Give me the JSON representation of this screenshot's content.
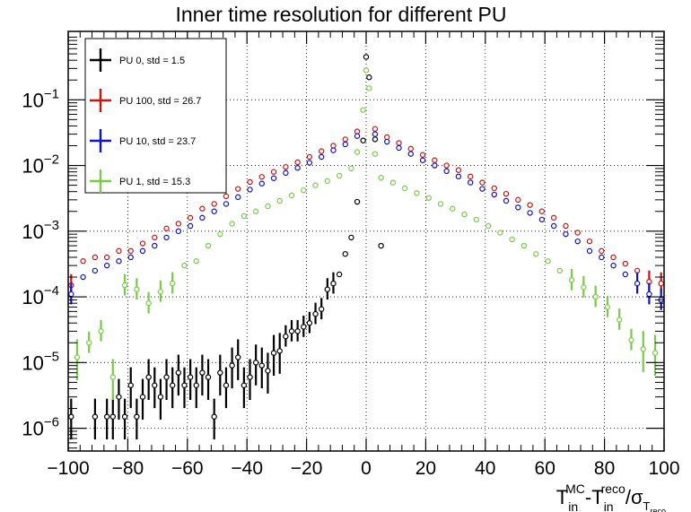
{
  "chart_data": {
    "type": "scatter",
    "title": "Inner time resolution for different PU",
    "xlabel": {
      "base1": "T",
      "sub1": "in",
      "sup1": "MC",
      "dash": "-",
      "base2": "T",
      "sub2": "in",
      "sup2": "reco",
      "slash": "/σ",
      "sub3": "T",
      "sub3sub": "reco"
    },
    "ylabel": "",
    "xlim": [
      -100,
      100
    ],
    "ylim": [
      4.5e-07,
      1.1
    ],
    "yscale": "log",
    "grid": true,
    "legend_position": "top-left",
    "x_ticks": [
      -100,
      -80,
      -60,
      -40,
      -20,
      0,
      20,
      40,
      60,
      80,
      100
    ],
    "x_tick_labels": [
      "−100",
      "−80",
      "−60",
      "−40",
      "−20",
      "0",
      "20",
      "40",
      "60",
      "80",
      "100"
    ],
    "y_ticks": [
      {
        "exp": -6,
        "base": "10",
        "sup": "−6"
      },
      {
        "exp": -5,
        "base": "10",
        "sup": "−5"
      },
      {
        "exp": -4,
        "base": "10",
        "sup": "−4"
      },
      {
        "exp": -3,
        "base": "10",
        "sup": "−3"
      },
      {
        "exp": -2,
        "base": "10",
        "sup": "−2"
      },
      {
        "exp": -1,
        "base": "10",
        "sup": "−1"
      }
    ],
    "series": [
      {
        "name": "PU 0, std = 1.5",
        "color": "#000000",
        "points": [
          [
            -99,
            1.5e-06
          ],
          [
            -91,
            1.5e-06
          ],
          [
            -87,
            1.5e-06
          ],
          [
            -85,
            1.5e-06
          ],
          [
            -83,
            3e-06
          ],
          [
            -81,
            1.5e-06
          ],
          [
            -79,
            4.5e-06
          ],
          [
            -77,
            1.5e-06
          ],
          [
            -75,
            3e-06
          ],
          [
            -73,
            6e-06
          ],
          [
            -71,
            4.5e-06
          ],
          [
            -69,
            3e-06
          ],
          [
            -67,
            6e-06
          ],
          [
            -65,
            4.5e-06
          ],
          [
            -63,
            7e-06
          ],
          [
            -61,
            4.5e-06
          ],
          [
            -59,
            6e-06
          ],
          [
            -57,
            4.5e-06
          ],
          [
            -55,
            7e-06
          ],
          [
            -53,
            6e-06
          ],
          [
            -51,
            1.5e-06
          ],
          [
            -49,
            7e-06
          ],
          [
            -47,
            4.5e-06
          ],
          [
            -45,
            9e-06
          ],
          [
            -43,
            1.2e-05
          ],
          [
            -41,
            4.5e-06
          ],
          [
            -39,
            6e-06
          ],
          [
            -37,
            1e-05
          ],
          [
            -35,
            9e-06
          ],
          [
            -33,
            7.5e-06
          ],
          [
            -31,
            1.4e-05
          ],
          [
            -29,
            1.5e-05
          ],
          [
            -27,
            2.5e-05
          ],
          [
            -25,
            3e-05
          ],
          [
            -23,
            3e-05
          ],
          [
            -21,
            3.5e-05
          ],
          [
            -19,
            4e-05
          ],
          [
            -17,
            5.5e-05
          ],
          [
            -15,
            6.5e-05
          ],
          [
            -13,
            0.00013
          ],
          [
            -11,
            0.00016
          ],
          [
            -9,
            0.00022
          ],
          [
            -7,
            0.00045
          ],
          [
            -5,
            0.0008
          ],
          [
            -3,
            0.0028
          ],
          [
            -1,
            0.024
          ],
          [
            0,
            0.45
          ],
          [
            1,
            0.22
          ],
          [
            3,
            0.025
          ],
          [
            5,
            0.0006
          ]
        ]
      },
      {
        "name": "PU 100, std = 26.7",
        "color": "#cc1111",
        "points": [
          [
            -99,
            0.00015
          ],
          [
            -95,
            0.00035
          ],
          [
            -91,
            0.0004
          ],
          [
            -87,
            0.0004
          ],
          [
            -83,
            0.0005
          ],
          [
            -79,
            0.0005
          ],
          [
            -75,
            0.00065
          ],
          [
            -71,
            0.0008
          ],
          [
            -67,
            0.0011
          ],
          [
            -63,
            0.0013
          ],
          [
            -59,
            0.0016
          ],
          [
            -55,
            0.0022
          ],
          [
            -51,
            0.0026
          ],
          [
            -47,
            0.0034
          ],
          [
            -43,
            0.0044
          ],
          [
            -39,
            0.0056
          ],
          [
            -35,
            0.0067
          ],
          [
            -31,
            0.008
          ],
          [
            -27,
            0.0095
          ],
          [
            -23,
            0.0112
          ],
          [
            -19,
            0.0135
          ],
          [
            -15,
            0.0165
          ],
          [
            -11,
            0.02
          ],
          [
            -7,
            0.025
          ],
          [
            -3,
            0.033
          ],
          [
            3,
            0.036
          ],
          [
            7,
            0.027
          ],
          [
            11,
            0.022
          ],
          [
            15,
            0.018
          ],
          [
            19,
            0.0145
          ],
          [
            23,
            0.012
          ],
          [
            27,
            0.01
          ],
          [
            31,
            0.0085
          ],
          [
            35,
            0.0068
          ],
          [
            39,
            0.0055
          ],
          [
            43,
            0.0045
          ],
          [
            47,
            0.0037
          ],
          [
            51,
            0.003
          ],
          [
            55,
            0.0025
          ],
          [
            59,
            0.002
          ],
          [
            63,
            0.0016
          ],
          [
            67,
            0.0012
          ],
          [
            71,
            0.00095
          ],
          [
            75,
            0.0007
          ],
          [
            79,
            0.0005
          ],
          [
            83,
            0.0004
          ],
          [
            87,
            0.00032
          ],
          [
            91,
            0.00025
          ],
          [
            95,
            0.00017
          ],
          [
            99,
            0.00016
          ]
        ]
      },
      {
        "name": "PU 10, std = 23.7",
        "color": "#1111cc",
        "points": [
          [
            -99,
            0.00011
          ],
          [
            -95,
            0.0002
          ],
          [
            -91,
            0.00025
          ],
          [
            -87,
            0.0003
          ],
          [
            -83,
            0.00035
          ],
          [
            -79,
            0.0004
          ],
          [
            -75,
            0.0005
          ],
          [
            -71,
            0.0006
          ],
          [
            -67,
            0.0008
          ],
          [
            -63,
            0.001
          ],
          [
            -59,
            0.0012
          ],
          [
            -55,
            0.0016
          ],
          [
            -51,
            0.002
          ],
          [
            -47,
            0.0026
          ],
          [
            -43,
            0.0033
          ],
          [
            -39,
            0.0043
          ],
          [
            -35,
            0.0053
          ],
          [
            -31,
            0.0064
          ],
          [
            -27,
            0.0077
          ],
          [
            -23,
            0.0092
          ],
          [
            -19,
            0.011
          ],
          [
            -15,
            0.0135
          ],
          [
            -11,
            0.017
          ],
          [
            -7,
            0.021
          ],
          [
            -3,
            0.028
          ],
          [
            3,
            0.03
          ],
          [
            7,
            0.023
          ],
          [
            11,
            0.0185
          ],
          [
            15,
            0.015
          ],
          [
            19,
            0.012
          ],
          [
            23,
            0.01
          ],
          [
            27,
            0.0082
          ],
          [
            31,
            0.0068
          ],
          [
            35,
            0.0055
          ],
          [
            39,
            0.0044
          ],
          [
            43,
            0.0036
          ],
          [
            47,
            0.0029
          ],
          [
            51,
            0.0023
          ],
          [
            55,
            0.0019
          ],
          [
            59,
            0.0015
          ],
          [
            63,
            0.0012
          ],
          [
            67,
            0.0009
          ],
          [
            71,
            0.0007
          ],
          [
            75,
            0.0005
          ],
          [
            79,
            0.0004
          ],
          [
            83,
            0.0003
          ],
          [
            87,
            0.00022
          ],
          [
            91,
            0.00016
          ],
          [
            95,
            0.00011
          ],
          [
            99,
            9e-05
          ]
        ]
      },
      {
        "name": "PU 1, std = 15.3",
        "color": "#77cc44",
        "points": [
          [
            -97,
            1.2e-05
          ],
          [
            -93,
            2e-05
          ],
          [
            -89,
            3e-05
          ],
          [
            -85,
            6e-06
          ],
          [
            -81,
            0.00015
          ],
          [
            -77,
            0.00013
          ],
          [
            -73,
            8e-05
          ],
          [
            -69,
            0.00012
          ],
          [
            -65,
            0.00016
          ],
          [
            -61,
            0.0003
          ],
          [
            -57,
            0.00035
          ],
          [
            -53,
            0.0006
          ],
          [
            -49,
            0.0009
          ],
          [
            -45,
            0.0013
          ],
          [
            -41,
            0.0017
          ],
          [
            -37,
            0.002
          ],
          [
            -33,
            0.0024
          ],
          [
            -29,
            0.0029
          ],
          [
            -25,
            0.0035
          ],
          [
            -21,
            0.0042
          ],
          [
            -17,
            0.005
          ],
          [
            -13,
            0.0058
          ],
          [
            -9,
            0.007
          ],
          [
            -5,
            0.009
          ],
          [
            -3,
            0.016
          ],
          [
            -1,
            0.07
          ],
          [
            0,
            0.28
          ],
          [
            1,
            0.15
          ],
          [
            3,
            0.015
          ],
          [
            5,
            0.0065
          ],
          [
            9,
            0.0055
          ],
          [
            13,
            0.0045
          ],
          [
            17,
            0.0038
          ],
          [
            21,
            0.0032
          ],
          [
            25,
            0.0026
          ],
          [
            29,
            0.0022
          ],
          [
            33,
            0.0018
          ],
          [
            37,
            0.0015
          ],
          [
            41,
            0.0012
          ],
          [
            45,
            0.00095
          ],
          [
            49,
            0.00075
          ],
          [
            53,
            0.0006
          ],
          [
            57,
            0.00045
          ],
          [
            61,
            0.00035
          ],
          [
            65,
            0.00025
          ],
          [
            69,
            0.00018
          ],
          [
            73,
            0.00014
          ],
          [
            77,
            0.0001
          ],
          [
            81,
            7e-05
          ],
          [
            85,
            4.5e-05
          ],
          [
            89,
            2.2e-05
          ],
          [
            93,
            1.6e-05
          ],
          [
            97,
            1.4e-05
          ]
        ]
      }
    ]
  }
}
